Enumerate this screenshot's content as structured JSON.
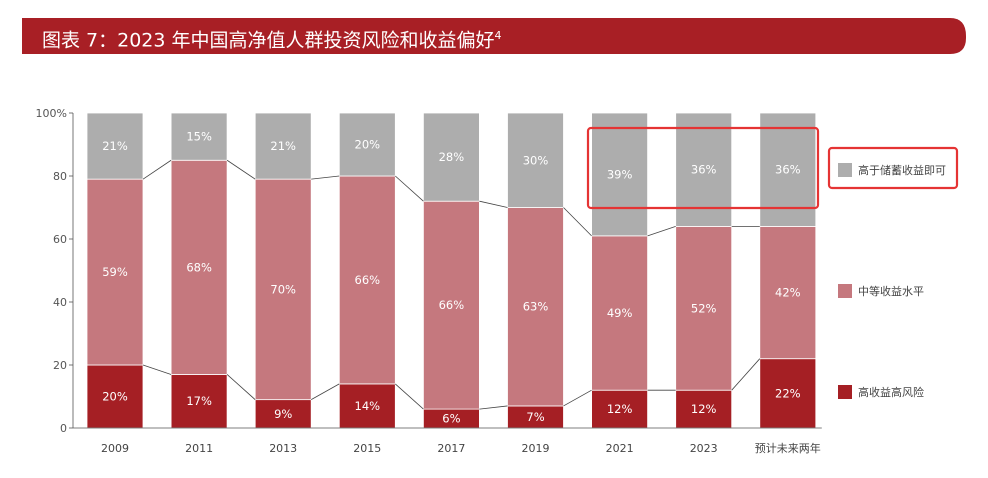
{
  "header": {
    "title": "图表 7：2023 年中国高净值人群投资风险和收益偏好",
    "footnote_mark": "4"
  },
  "colors": {
    "banner": "#A81F25",
    "high_return": "#A51F24",
    "mid_return": "#C5787E",
    "savings_plus": "#ADADAD",
    "highlight_box": "#E53434"
  },
  "chart_data": {
    "type": "bar",
    "stacked": true,
    "categories": [
      "2009",
      "2011",
      "2013",
      "2015",
      "2017",
      "2019",
      "2021",
      "2023",
      "预计未来两年"
    ],
    "series": [
      {
        "name": "高收益高风险",
        "values": [
          20,
          17,
          9,
          14,
          6,
          7,
          12,
          12,
          22
        ],
        "labels": [
          "20%",
          "17%",
          "9%",
          "14%",
          "6%",
          "7%",
          "12%",
          "12%",
          "22%"
        ]
      },
      {
        "name": "中等收益水平",
        "values": [
          59,
          68,
          70,
          66,
          66,
          63,
          49,
          52,
          42
        ],
        "labels": [
          "59%",
          "68%",
          "70%",
          "66%",
          "66%",
          "63%",
          "49%",
          "52%",
          "42%"
        ]
      },
      {
        "name": "高于储蓄收益即可",
        "values": [
          21,
          15,
          21,
          20,
          28,
          30,
          39,
          36,
          36
        ],
        "labels": [
          "21%",
          "15%",
          "21%",
          "20%",
          "28%",
          "30%",
          "39%",
          "36%",
          "36%"
        ]
      }
    ],
    "y_ticks": [
      "0",
      "20",
      "40",
      "60",
      "80",
      "100%"
    ],
    "ylim": [
      0,
      100
    ],
    "legend_position": "right",
    "highlight": "2021–预计未来两年 高于储蓄收益即可"
  }
}
